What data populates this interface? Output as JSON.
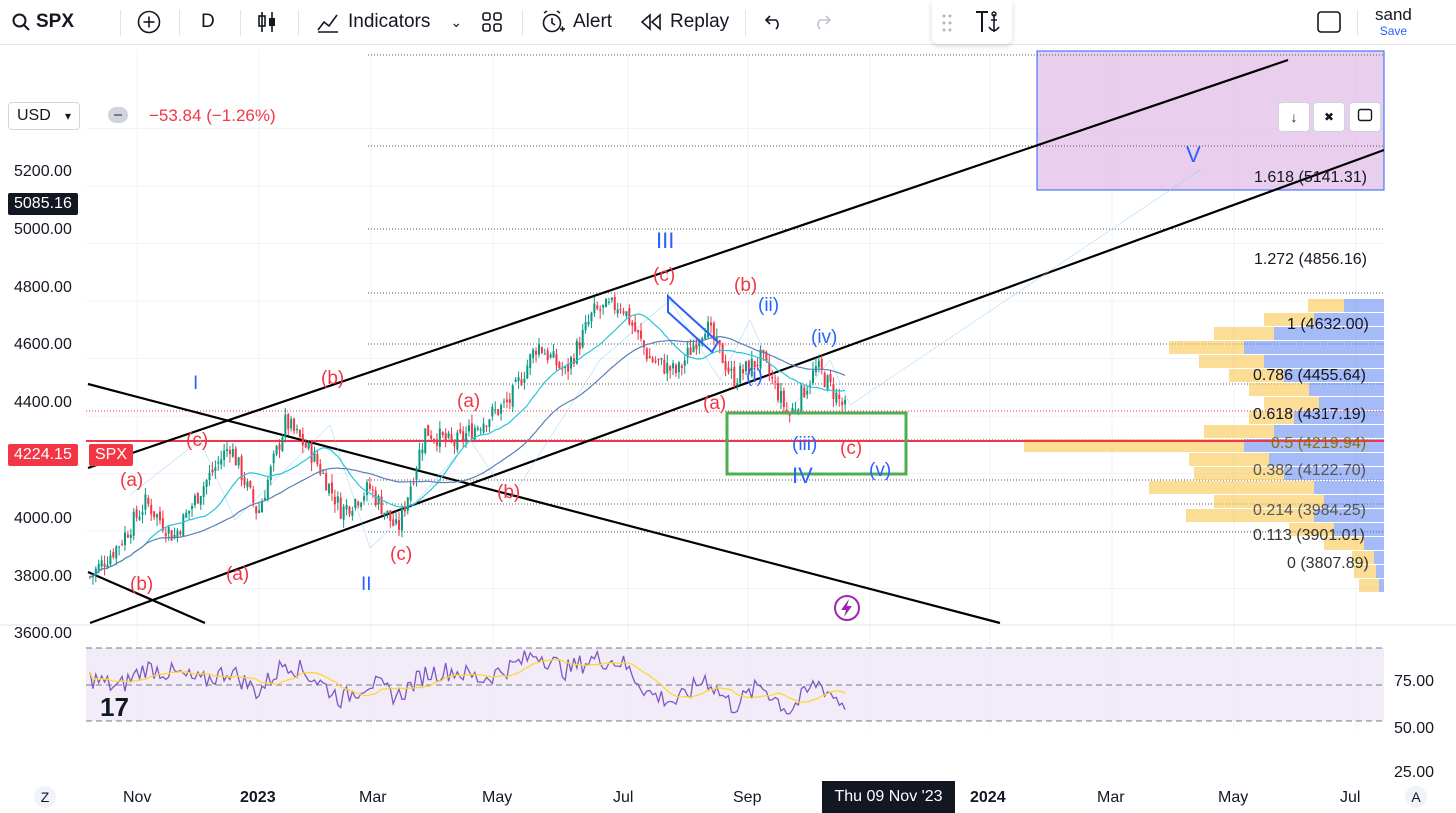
{
  "toolbar": {
    "symbol": "SPX",
    "interval": "D",
    "indicators": "Indicators",
    "alert": "Alert",
    "replay": "Replay",
    "user": "sand",
    "save": "Save"
  },
  "price_panel": {
    "currency": "USD",
    "change": "−53.84 (−1.26%)",
    "current_price": "4224.15",
    "current_symbol": "SPX",
    "crosshair_price": "5085.16",
    "crosshair_date": "Thu 09 Nov '23",
    "y_ticks": [
      "5200.00",
      "5000.00",
      "4800.00",
      "4600.00",
      "4400.00",
      "4200.00",
      "4000.00",
      "3800.00",
      "3600.00"
    ],
    "x_ticks": [
      "Nov",
      "2023",
      "Mar",
      "May",
      "Jul",
      "Sep",
      "2024",
      "Mar",
      "May",
      "Jul"
    ],
    "rsi_ticks": [
      "75.00",
      "50.00",
      "25.00"
    ]
  },
  "fibonacci": [
    {
      "label": "1.618 (5141.31)"
    },
    {
      "label": "1.272 (4856.16)"
    },
    {
      "label": "1 (4632.00)"
    },
    {
      "label": "0.786 (4455.64)"
    },
    {
      "label": "0.618 (4317.19)"
    },
    {
      "label": "0.5 (4219.94)"
    },
    {
      "label": "0.382 (4122.70)"
    },
    {
      "label": "0.214 (3984.25)"
    },
    {
      "label": "0.113 (3901.01)"
    },
    {
      "label": "0 (3807.89)"
    }
  ],
  "wave_labels": {
    "I": "I",
    "II": "II",
    "III": "III",
    "IV": "IV",
    "V": "V",
    "a": "(a)",
    "b": "(b)",
    "c": "(c)",
    "i": "(i)",
    "ii": "(ii)",
    "iii": "(iii)",
    "iv": "(iv)",
    "v": "(v)"
  },
  "colors": {
    "up": "#089981",
    "down": "#f23645",
    "blue_label": "#2962ff",
    "red_label": "#f23645",
    "target_box": "#e1bee7",
    "green_box": "#4caf50"
  },
  "chart_data": {
    "type": "line",
    "series": [
      {
        "values": [
          3640,
          3750,
          3900,
          3780,
          3950,
          4100,
          3860,
          4180,
          4060,
          3870,
          3950,
          3800,
          4150,
          4100,
          4180,
          4250,
          4450,
          4350,
          4560,
          4590,
          4400,
          4350,
          4520,
          4330,
          4400,
          4200,
          4370,
          4224
        ]
      }
    ],
    "ylim": [
      3480,
      5300
    ],
    "rsi": [
      55,
      48,
      62,
      58,
      52,
      60,
      45,
      66,
      55,
      40,
      52,
      42,
      58,
      60,
      54,
      62,
      72,
      60,
      68,
      66,
      44,
      38,
      55,
      35,
      50,
      32,
      52,
      36
    ]
  }
}
